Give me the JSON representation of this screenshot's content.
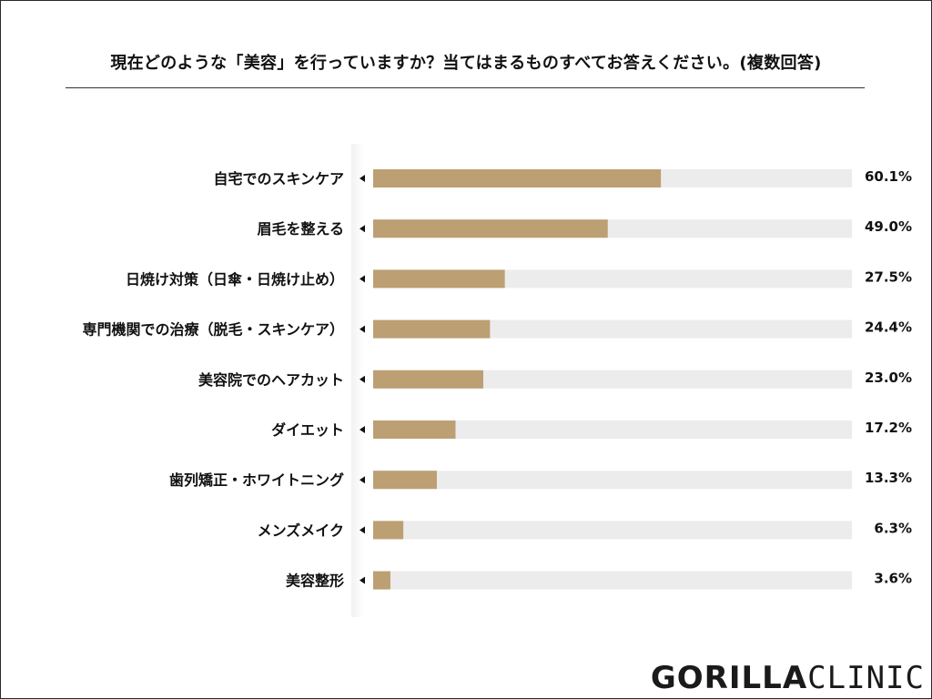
{
  "chart_data": {
    "type": "bar",
    "orientation": "horizontal",
    "title": "現在どのような「美容」を行っていますか？当てはまるものすべてお答えください。(複数回答)",
    "categories": [
      "自宅でのスキンケア",
      "眉毛を整える",
      "日焼け対策（日傘・日焼け止め）",
      "専門機関での治療（脱毛・スキンケア）",
      "美容院でのヘアカット",
      "ダイエット",
      "歯列矯正・ホワイトニング",
      "メンズメイク",
      "美容整形"
    ],
    "values": [
      60.1,
      49.0,
      27.5,
      24.4,
      23.0,
      17.2,
      13.3,
      6.3,
      3.6
    ],
    "value_labels": [
      "60.1%",
      "49.0%",
      "27.5%",
      "24.4%",
      "23.0%",
      "17.2%",
      "13.3%",
      "6.3%",
      "3.6%"
    ],
    "xlim": [
      0,
      100
    ],
    "bar_color": "#bc9f73",
    "track_color": "#ececec",
    "grid": false,
    "legend": "none"
  },
  "logo": {
    "bold": "GORILLA",
    "light": "CLINIC"
  }
}
